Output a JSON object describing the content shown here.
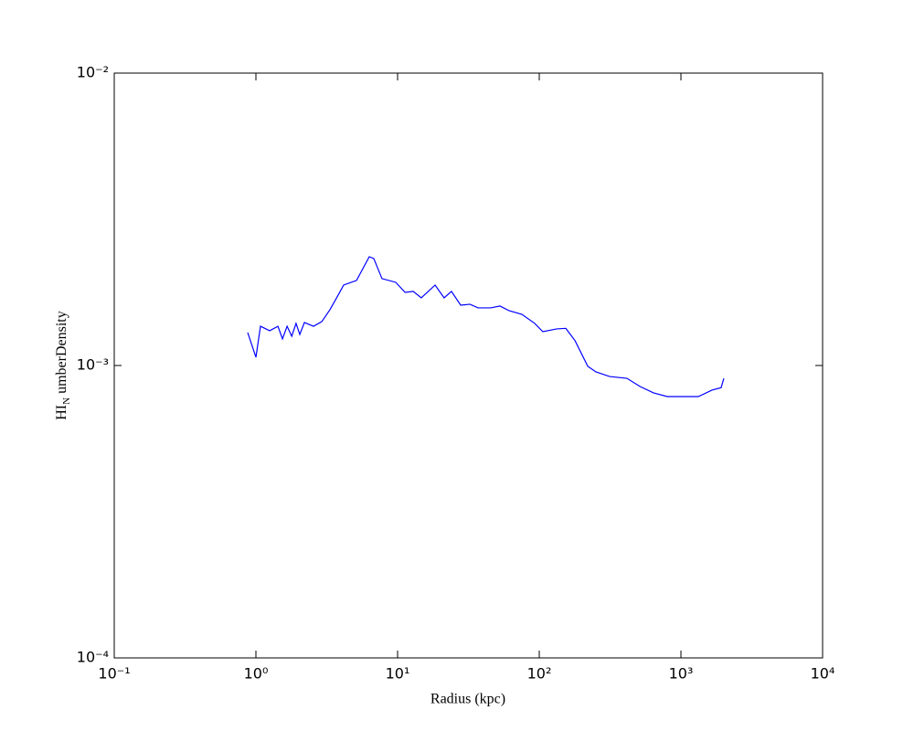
{
  "chart_data": {
    "type": "line",
    "x_label": "Radius  (kpc)",
    "y_label": [
      "HI",
      "N",
      "umberDensity"
    ],
    "x_log": true,
    "y_log": true,
    "xlim": [
      0.1,
      10000
    ],
    "ylim": [
      0.0001,
      0.01
    ],
    "xticks": [
      {
        "value": 0.1,
        "label": "10⁻¹"
      },
      {
        "value": 1,
        "label": "10⁰"
      },
      {
        "value": 10,
        "label": "10¹"
      },
      {
        "value": 100,
        "label": "10²"
      },
      {
        "value": 1000,
        "label": "10³"
      },
      {
        "value": 10000,
        "label": "10⁴"
      }
    ],
    "yticks": [
      {
        "value": 0.0001,
        "label": "10⁻⁴"
      },
      {
        "value": 0.001,
        "label": "10⁻³"
      },
      {
        "value": 0.01,
        "label": "10⁻²"
      }
    ],
    "series": [
      {
        "color": "#0000ff",
        "x": [
          0.875,
          1.0,
          1.077,
          1.25,
          1.43,
          1.54,
          1.66,
          1.79,
          1.92,
          2.04,
          2.2,
          2.55,
          2.92,
          3.33,
          3.87,
          4.16,
          5.13,
          6.31,
          6.79,
          7.76,
          9.71,
          11.3,
          12.9,
          14.7,
          18.4,
          21.3,
          24.0,
          27.9,
          32.4,
          37.0,
          45.5,
          52.8,
          61.2,
          75.4,
          92.9,
          106,
          133,
          154,
          179,
          220,
          251,
          314,
          416,
          513,
          640,
          800,
          1077,
          1327,
          1656,
          1923,
          2009
        ],
        "values": [
          0.001296,
          0.001067,
          0.001362,
          0.001315,
          0.001362,
          0.001233,
          0.001362,
          0.001259,
          0.001393,
          0.001277,
          0.001403,
          0.001362,
          0.001413,
          0.001552,
          0.001766,
          0.001884,
          0.001954,
          0.002355,
          0.002322,
          0.001982,
          0.001925,
          0.001778,
          0.001792,
          0.001704,
          0.001884,
          0.001704,
          0.001792,
          0.001608,
          0.00162,
          0.001574,
          0.001574,
          0.001597,
          0.00154,
          0.001496,
          0.001393,
          0.001305,
          0.001334,
          0.00134,
          0.001215,
          0.000994,
          0.000951,
          0.000917,
          0.000904,
          0.000848,
          0.000806,
          0.000783,
          0.000783,
          0.000783,
          0.000824,
          0.00084,
          0.000904
        ]
      }
    ]
  }
}
